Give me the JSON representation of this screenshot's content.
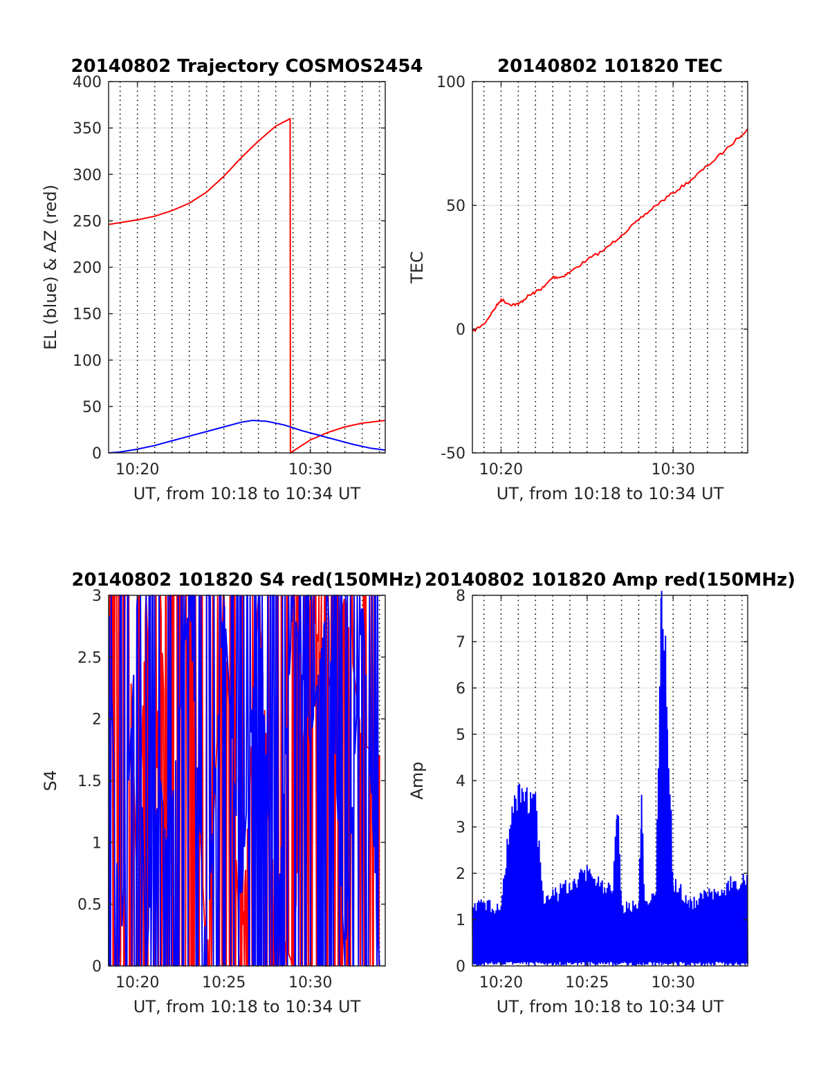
{
  "colors": {
    "red": "#ff0000",
    "blue": "#0000ff",
    "axis": "#262626",
    "grid": "#dddddd"
  },
  "chart_data": [
    {
      "type": "line",
      "title": "20140802 Trajectory COSMOS2454",
      "xlabel": "UT, from 10:18 to 10:34 UT",
      "ylabel": "EL (blue) & AZ (red)",
      "xlim": [
        "10:18:20",
        "10:34:20"
      ],
      "ylim": [
        0,
        400
      ],
      "yticks": [
        "0",
        "50",
        "100",
        "150",
        "200",
        "250",
        "300",
        "350",
        "400"
      ],
      "xticks": [
        "10:20",
        "10:30"
      ],
      "grid": "dotted vertical every 1 minute, light horizontal at y ticks",
      "series": [
        {
          "color": "red",
          "x": [
            "10:18:20",
            "10:20:00",
            "10:21:00",
            "10:22:00",
            "10:23:00",
            "10:24:00",
            "10:25:00",
            "10:26:00",
            "10:27:00",
            "10:28:00",
            "10:28:50",
            "10:28:51",
            "10:30:00",
            "10:31:00",
            "10:32:00",
            "10:33:00",
            "10:34:20"
          ],
          "values": [
            246,
            251,
            255,
            261,
            269,
            281,
            298,
            318,
            336,
            352,
            360,
            0,
            14,
            22,
            28,
            32,
            35
          ]
        },
        {
          "color": "blue",
          "x": [
            "10:18:20",
            "10:19:00",
            "10:20:00",
            "10:21:00",
            "10:22:00",
            "10:23:00",
            "10:24:00",
            "10:25:00",
            "10:26:00",
            "10:26:40",
            "10:27:30",
            "10:28:30",
            "10:29:30",
            "10:30:30",
            "10:31:30",
            "10:32:30",
            "10:33:30",
            "10:34:20"
          ],
          "values": [
            0,
            1,
            4,
            8,
            13,
            18,
            23,
            28,
            33,
            35,
            34,
            30,
            24,
            19,
            14,
            9,
            5,
            3
          ]
        }
      ]
    },
    {
      "type": "line",
      "title": "20140802 101820 TEC",
      "xlabel": "UT, from 10:18 to 10:34 UT",
      "ylabel": "TEC",
      "xlim": [
        "10:18:20",
        "10:34:20"
      ],
      "ylim": [
        -50,
        100
      ],
      "yticks": [
        "-50",
        "0",
        "50",
        "100"
      ],
      "xticks": [
        "10:20",
        "10:30"
      ],
      "series": [
        {
          "color": "red",
          "x": [
            "10:18:20",
            "10:19:00",
            "10:19:30",
            "10:20:00",
            "10:20:30",
            "10:21:00",
            "10:21:30",
            "10:22:00",
            "10:22:30",
            "10:23:00",
            "10:23:30",
            "10:24:00",
            "10:25:00",
            "10:26:00",
            "10:27:00",
            "10:28:00",
            "10:29:00",
            "10:30:00",
            "10:31:00",
            "10:32:00",
            "10:33:00",
            "10:34:20"
          ],
          "values": [
            -1,
            2,
            7,
            12,
            10,
            10,
            13,
            15,
            17,
            21,
            21,
            23,
            28,
            32,
            38,
            44,
            50,
            55,
            60,
            66,
            72,
            81
          ]
        }
      ]
    },
    {
      "type": "line",
      "title": "20140802 101820 S4 red(150MHz)",
      "xlabel": "UT, from 10:18 to 10:34 UT",
      "ylabel": "S4",
      "xlim": [
        "10:18:20",
        "10:34:20"
      ],
      "ylim": [
        0,
        3
      ],
      "yticks": [
        "0",
        "0.5",
        "1",
        "1.5",
        "2",
        "2.5",
        "3"
      ],
      "xticks": [
        "10:20",
        "10:25",
        "10:30"
      ],
      "description_note": "dense noisy fluctuation clipped at 3",
      "series": [
        {
          "color": "red",
          "x": [
            "10:18:20",
            "10:19:30",
            "10:20:00",
            "10:20:30",
            "10:21:00",
            "10:21:20",
            "10:21:40",
            "10:22:00",
            "10:23:00",
            "10:24:00",
            "10:25:00",
            "10:26:00",
            "10:27:00",
            "10:28:00",
            "10:29:00",
            "10:30:00",
            "10:31:00",
            "10:32:00",
            "10:33:00",
            "10:34:00"
          ],
          "values": [
            3,
            3,
            0.5,
            3,
            0.9,
            3,
            1.6,
            3,
            3,
            0,
            3,
            0,
            3,
            0.4,
            0,
            3,
            2.2,
            3,
            1.8,
            1.7
          ]
        },
        {
          "color": "blue",
          "x": [
            "10:18:20",
            "10:19:00",
            "10:20:00",
            "10:20:30",
            "10:21:00",
            "10:21:20",
            "10:21:40",
            "10:22:00",
            "10:23:00",
            "10:24:00",
            "10:25:00",
            "10:26:00",
            "10:27:00",
            "10:28:00",
            "10:29:00",
            "10:30:00",
            "10:31:00",
            "10:32:00",
            "10:33:00",
            "10:34:00"
          ],
          "values": [
            3,
            0,
            3,
            0,
            1.1,
            1.5,
            1.0,
            1.3,
            3,
            0,
            3,
            0.5,
            3,
            0,
            3,
            1.8,
            3,
            0,
            3,
            0
          ]
        }
      ]
    },
    {
      "type": "line",
      "title": "20140802 101820 Amp red(150MHz)",
      "xlabel": "UT, from 10:18 to 10:34 UT",
      "ylabel": "Amp",
      "xlim": [
        "10:18:20",
        "10:34:20"
      ],
      "ylim": [
        0,
        8
      ],
      "yticks": [
        "0",
        "1",
        "2",
        "3",
        "4",
        "5",
        "6",
        "7",
        "8"
      ],
      "xticks": [
        "10:20",
        "10:25",
        "10:30"
      ],
      "description_note": "dense noise floor near 1 with bursts",
      "series": [
        {
          "color": "blue",
          "x": [
            "10:18:20",
            "10:20:00",
            "10:20:30",
            "10:21:00",
            "10:21:30",
            "10:22:00",
            "10:22:30",
            "10:25:00",
            "10:26:30",
            "10:26:45",
            "10:27:00",
            "10:28:00",
            "10:28:10",
            "10:28:20",
            "10:29:00",
            "10:29:20",
            "10:29:40",
            "10:30:00",
            "10:31:00",
            "10:34:20"
          ],
          "values": [
            1.2,
            1.1,
            2.7,
            3.3,
            3.2,
            3.0,
            1.2,
            1.8,
            1.4,
            3.2,
            1.1,
            1.2,
            3.1,
            1.2,
            1.3,
            7.8,
            5.0,
            1.6,
            1.2,
            1.7
          ]
        }
      ]
    }
  ]
}
